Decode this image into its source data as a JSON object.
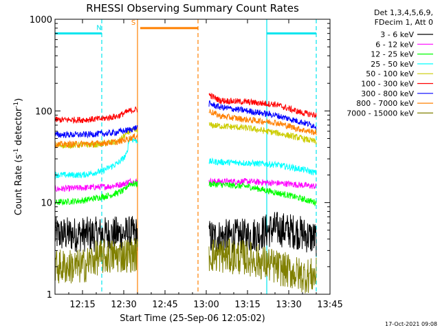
{
  "chart_data": {
    "type": "line",
    "title": "RHESSI Observing Summary Count Rates",
    "xlabel": "Start Time (25-Sep-06 12:05:02)",
    "ylabel_main": "Count Rate (s",
    "ylabel_sup1": "-1",
    "ylabel_mid": " detector",
    "ylabel_sup2": "-1",
    "ylabel_end": ")",
    "y_scale": "log",
    "xlim": [
      "12:05",
      "13:45"
    ],
    "ylim": [
      1,
      1000
    ],
    "x_ticks": [
      "12:15",
      "12:30",
      "12:45",
      "13:00",
      "13:15",
      "13:30",
      "13:45"
    ],
    "y_ticks": [
      "1",
      "10",
      "100",
      "1000"
    ],
    "legend_header": [
      "Det 1,3,4,5,6,9,",
      "FDecim 1, Att 0"
    ],
    "timestamp": "17-Oct-2021 09:08",
    "gaps": [
      [
        "12:35",
        "13:01"
      ]
    ],
    "series": [
      {
        "name": "3 - 6 keV",
        "color": "#000000",
        "points": [
          [
            "12:05",
            4.5
          ],
          [
            "12:20",
            4.5
          ],
          [
            "12:32",
            4.6
          ],
          [
            "13:01",
            4.2
          ],
          [
            "13:15",
            4.3
          ],
          [
            "13:25",
            5.2
          ],
          [
            "13:33",
            4.8
          ],
          [
            "13:40",
            4.0
          ]
        ]
      },
      {
        "name": "6 - 12 keV",
        "color": "#ff00ff",
        "points": [
          [
            "12:05",
            14
          ],
          [
            "12:15",
            14.5
          ],
          [
            "12:25",
            15
          ],
          [
            "12:30",
            16
          ],
          [
            "12:32",
            17
          ],
          [
            "13:01",
            17
          ],
          [
            "13:15",
            17
          ],
          [
            "13:30",
            16
          ],
          [
            "13:40",
            15
          ]
        ]
      },
      {
        "name": "12 - 25 keV",
        "color": "#00ff00",
        "points": [
          [
            "12:05",
            10
          ],
          [
            "12:15",
            10.5
          ],
          [
            "12:25",
            12
          ],
          [
            "12:30",
            13.5
          ],
          [
            "12:32",
            16
          ],
          [
            "13:01",
            16
          ],
          [
            "13:15",
            15
          ],
          [
            "13:30",
            12
          ],
          [
            "13:40",
            10
          ]
        ]
      },
      {
        "name": "25 - 50 keV",
        "color": "#00ffff",
        "points": [
          [
            "12:05",
            20
          ],
          [
            "12:15",
            20
          ],
          [
            "12:22",
            22
          ],
          [
            "12:28",
            27
          ],
          [
            "12:31",
            33
          ],
          [
            "12:32",
            50
          ],
          [
            "13:01",
            28
          ],
          [
            "13:15",
            27
          ],
          [
            "13:25",
            26
          ],
          [
            "13:35",
            23
          ],
          [
            "13:40",
            21
          ]
        ]
      },
      {
        "name": "50 - 100 keV",
        "color": "#cccc00",
        "points": [
          [
            "12:05",
            42
          ],
          [
            "12:20",
            43
          ],
          [
            "12:28",
            46
          ],
          [
            "12:32",
            60
          ],
          [
            "13:01",
            70
          ],
          [
            "13:15",
            65
          ],
          [
            "13:25",
            58
          ],
          [
            "13:35",
            50
          ],
          [
            "13:40",
            46
          ]
        ]
      },
      {
        "name": "100 - 300 keV",
        "color": "#ff0000",
        "points": [
          [
            "12:05",
            80
          ],
          [
            "12:15",
            80
          ],
          [
            "12:22",
            82
          ],
          [
            "12:28",
            88
          ],
          [
            "12:32",
            100
          ],
          [
            "13:01",
            150
          ],
          [
            "13:05",
            130
          ],
          [
            "13:15",
            125
          ],
          [
            "13:25",
            118
          ],
          [
            "13:35",
            95
          ],
          [
            "13:40",
            90
          ]
        ]
      },
      {
        "name": "300 - 800 keV",
        "color": "#0000ff",
        "points": [
          [
            "12:05",
            55
          ],
          [
            "12:15",
            55
          ],
          [
            "12:25",
            57
          ],
          [
            "12:32",
            62
          ],
          [
            "13:01",
            120
          ],
          [
            "13:05",
            110
          ],
          [
            "13:15",
            100
          ],
          [
            "13:25",
            90
          ],
          [
            "13:35",
            75
          ],
          [
            "13:40",
            68
          ]
        ]
      },
      {
        "name": "800 - 7000 keV",
        "color": "#ff8000",
        "points": [
          [
            "12:05",
            43
          ],
          [
            "12:20",
            44
          ],
          [
            "12:28",
            46
          ],
          [
            "12:32",
            50
          ],
          [
            "13:01",
            100
          ],
          [
            "13:05",
            88
          ],
          [
            "13:15",
            80
          ],
          [
            "13:25",
            75
          ],
          [
            "13:35",
            62
          ],
          [
            "13:40",
            58
          ]
        ]
      },
      {
        "name": "7000 - 15000 keV",
        "color": "#808000",
        "points": [
          [
            "12:05",
            2.0
          ],
          [
            "12:15",
            2.0
          ],
          [
            "12:20",
            2.5
          ],
          [
            "12:32",
            2.7
          ],
          [
            "13:01",
            2.7
          ],
          [
            "13:15",
            2.5
          ],
          [
            "13:25",
            2.0
          ],
          [
            "13:35",
            1.6
          ],
          [
            "13:40",
            1.6
          ]
        ]
      }
    ],
    "flags": [
      {
        "label": "N",
        "color": "#00e5ee",
        "value": 700,
        "spans": [
          [
            "12:05",
            "12:22"
          ],
          [
            "13:22",
            "13:40"
          ]
        ]
      },
      {
        "label": "S",
        "color": "#ff8000",
        "value": 800,
        "spans": [
          [
            "12:36",
            "12:57"
          ]
        ]
      }
    ],
    "vertical_lines": [
      {
        "time": "12:22",
        "color": "#00e5ee",
        "style": "dashed"
      },
      {
        "time": "12:35",
        "color": "#ff8000",
        "style": "solid"
      },
      {
        "time": "12:57",
        "color": "#ff8000",
        "style": "dashed"
      },
      {
        "time": "13:22",
        "color": "#00e5ee",
        "style": "solid"
      },
      {
        "time": "13:40",
        "color": "#00e5ee",
        "style": "dashed"
      }
    ]
  }
}
